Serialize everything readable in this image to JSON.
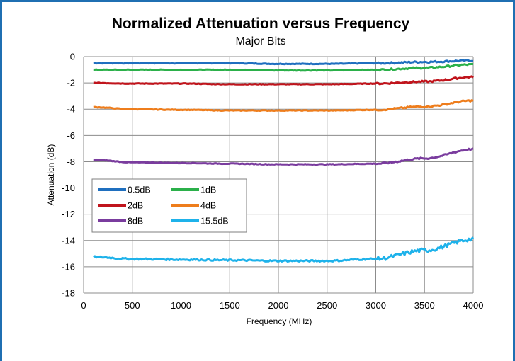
{
  "chart_data": {
    "type": "line",
    "title": "Normalized Attenuation versus Frequency",
    "subtitle": "Major Bits",
    "xlabel": "Frequency (MHz)",
    "ylabel": "Attenuation (dB)",
    "xlim": [
      0,
      4000
    ],
    "ylim": [
      -18,
      0
    ],
    "xticks": [
      0,
      500,
      1000,
      1500,
      2000,
      2500,
      3000,
      3500,
      4000
    ],
    "yticks": [
      0,
      -2,
      -4,
      -6,
      -8,
      -10,
      -12,
      -14,
      -16,
      -18
    ],
    "grid": true,
    "legend_position": "left-middle, inside plot",
    "series": [
      {
        "name": "0.5dB",
        "color": "#1f6fbf",
        "x": [
          100,
          500,
          1000,
          1500,
          2000,
          2500,
          3000,
          3500,
          4000
        ],
        "y": [
          -0.5,
          -0.5,
          -0.5,
          -0.5,
          -0.55,
          -0.55,
          -0.5,
          -0.4,
          -0.3
        ]
      },
      {
        "name": "1dB",
        "color": "#2bb04a",
        "x": [
          100,
          500,
          1000,
          1500,
          2000,
          2500,
          3000,
          3500,
          4000
        ],
        "y": [
          -1.0,
          -1.0,
          -1.0,
          -1.0,
          -1.05,
          -1.05,
          -1.0,
          -0.85,
          -0.6
        ]
      },
      {
        "name": "2dB",
        "color": "#c0141c",
        "x": [
          100,
          500,
          1000,
          1500,
          2000,
          2500,
          3000,
          3500,
          4000
        ],
        "y": [
          -2.0,
          -2.05,
          -2.05,
          -2.1,
          -2.1,
          -2.1,
          -2.05,
          -1.9,
          -1.55
        ]
      },
      {
        "name": "4dB",
        "color": "#ee7d1c",
        "x": [
          100,
          500,
          1000,
          1500,
          2000,
          2500,
          3000,
          3500,
          4000
        ],
        "y": [
          -3.85,
          -4.0,
          -4.05,
          -4.1,
          -4.1,
          -4.1,
          -4.05,
          -3.8,
          -3.35
        ]
      },
      {
        "name": "8dB",
        "color": "#7a3c9e",
        "x": [
          100,
          500,
          1000,
          1500,
          2000,
          2500,
          3000,
          3500,
          4000
        ],
        "y": [
          -7.85,
          -8.05,
          -8.1,
          -8.15,
          -8.2,
          -8.2,
          -8.15,
          -7.75,
          -7.05
        ]
      },
      {
        "name": "15.5dB",
        "color": "#1eb2ea",
        "x": [
          100,
          500,
          1000,
          1500,
          2000,
          2500,
          3000,
          3500,
          4000
        ],
        "y": [
          -15.25,
          -15.4,
          -15.45,
          -15.5,
          -15.55,
          -15.55,
          -15.4,
          -14.75,
          -13.9
        ]
      }
    ]
  }
}
